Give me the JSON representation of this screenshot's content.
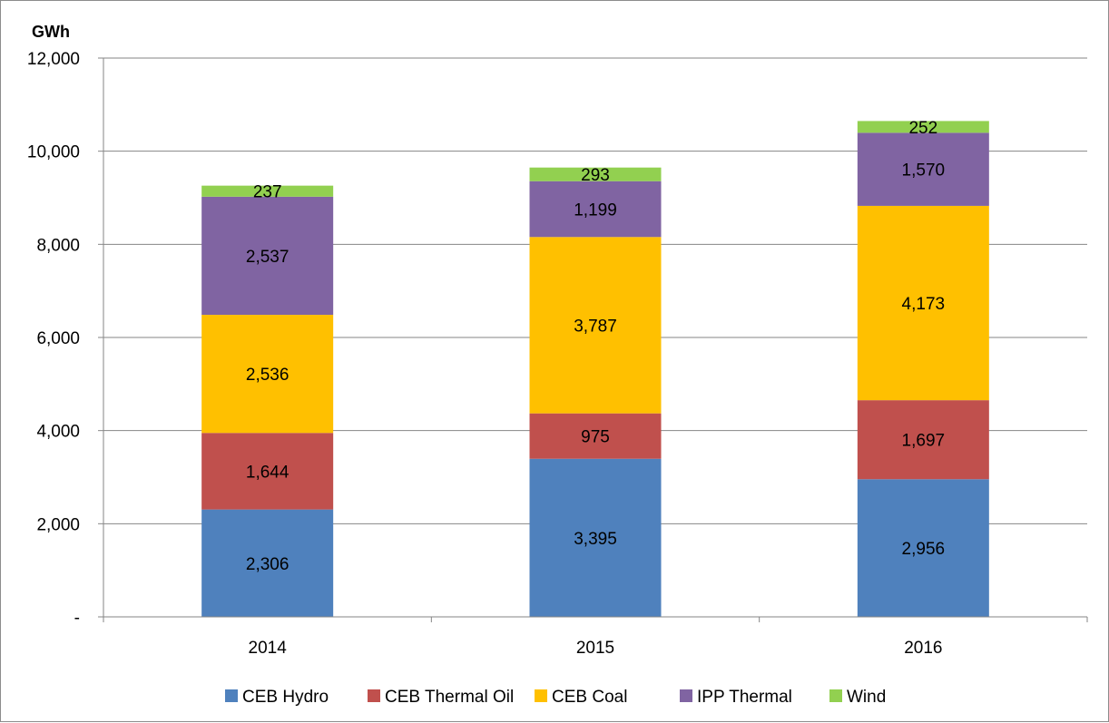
{
  "chart_data": {
    "type": "bar",
    "stacked": true,
    "unit_label": "GWh",
    "categories": [
      "2014",
      "2015",
      "2016"
    ],
    "series": [
      {
        "name": "CEB Hydro",
        "color": "#4f81bd",
        "values": [
          2306,
          3395,
          2956
        ],
        "labels": [
          "2,306",
          "3,395",
          "2,956"
        ]
      },
      {
        "name": "CEB Thermal Oil",
        "color": "#c0504d",
        "values": [
          1644,
          975,
          1697
        ],
        "labels": [
          "1,644",
          "975",
          "1,697"
        ]
      },
      {
        "name": "CEB Coal",
        "color": "#ffc000",
        "values": [
          2536,
          3787,
          4173
        ],
        "labels": [
          "2,536",
          "3,787",
          "4,173"
        ]
      },
      {
        "name": "IPP Thermal",
        "color": "#8064a2",
        "values": [
          2537,
          1199,
          1570
        ],
        "labels": [
          "2,537",
          "1,199",
          "1,570"
        ]
      },
      {
        "name": "Wind",
        "color": "#92d050",
        "values": [
          237,
          293,
          252
        ],
        "labels": [
          "237",
          "293",
          "252"
        ]
      }
    ],
    "ylim": [
      0,
      12000
    ],
    "yticks": [
      0,
      2000,
      4000,
      6000,
      8000,
      10000,
      12000
    ],
    "ytick_labels": [
      "-",
      "2,000",
      "4,000",
      "6,000",
      "8,000",
      "10,000",
      "12,000"
    ],
    "grid": true,
    "legend": "bottom"
  }
}
